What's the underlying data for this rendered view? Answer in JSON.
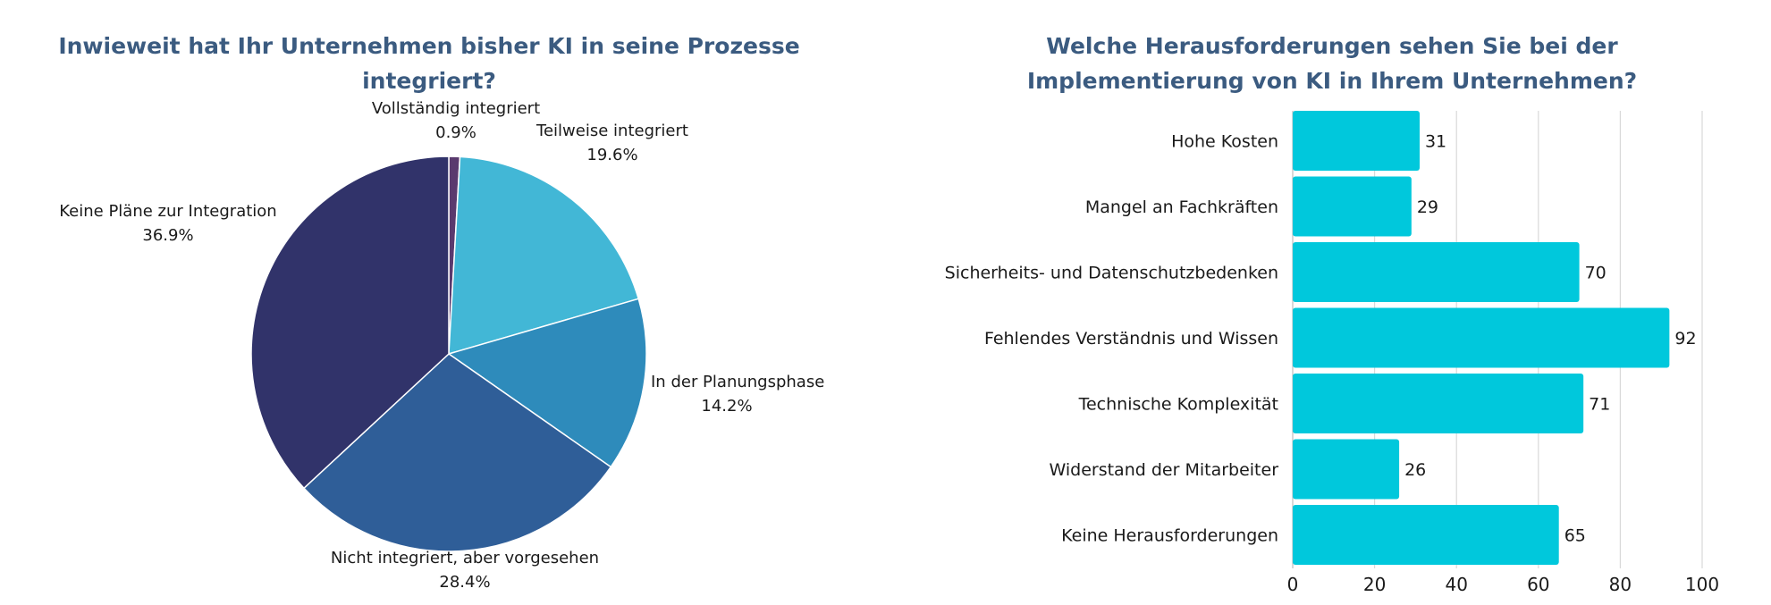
{
  "chart_data": [
    {
      "type": "pie",
      "title": [
        "Inwieweit hat Ihr Unternehmen bisher KI in seine Prozesse",
        "integriert?"
      ],
      "title_color": "#3b5b80",
      "slices": [
        {
          "label": "Vollständig integriert",
          "value": 0.9,
          "value_label": "0.9%",
          "color": "#5a3a6e"
        },
        {
          "label": "Teilweise integriert",
          "value": 19.6,
          "value_label": "19.6%",
          "color": "#42b7d6"
        },
        {
          "label": "In der Planungsphase",
          "value": 14.2,
          "value_label": "14.2%",
          "color": "#2e8bbb"
        },
        {
          "label": "Nicht integriert, aber vorgesehen",
          "value": 28.4,
          "value_label": "28.4%",
          "color": "#2f5e98"
        },
        {
          "label": "Keine Pläne zur Integration",
          "value": 36.9,
          "value_label": "36.9%",
          "color": "#31336a"
        }
      ]
    },
    {
      "type": "bar",
      "orientation": "horizontal",
      "title": [
        "Welche Herausforderungen sehen Sie bei der",
        "Implementierung von KI in Ihrem Unternehmen?"
      ],
      "title_color": "#3b5b80",
      "bar_color": "#00c8dc",
      "categories": [
        "Hohe Kosten",
        "Mangel an Fachkräften",
        "Sicherheits- und Datenschutzbedenken",
        "Fehlendes Verständnis und Wissen",
        "Technische Komplexität",
        "Widerstand der Mitarbeiter",
        "Keine Herausforderungen"
      ],
      "values": [
        31,
        29,
        70,
        92,
        71,
        26,
        65
      ],
      "xlim": [
        0,
        100
      ],
      "xticks": [
        0,
        20,
        40,
        60,
        80,
        100
      ],
      "grid": true
    }
  ]
}
